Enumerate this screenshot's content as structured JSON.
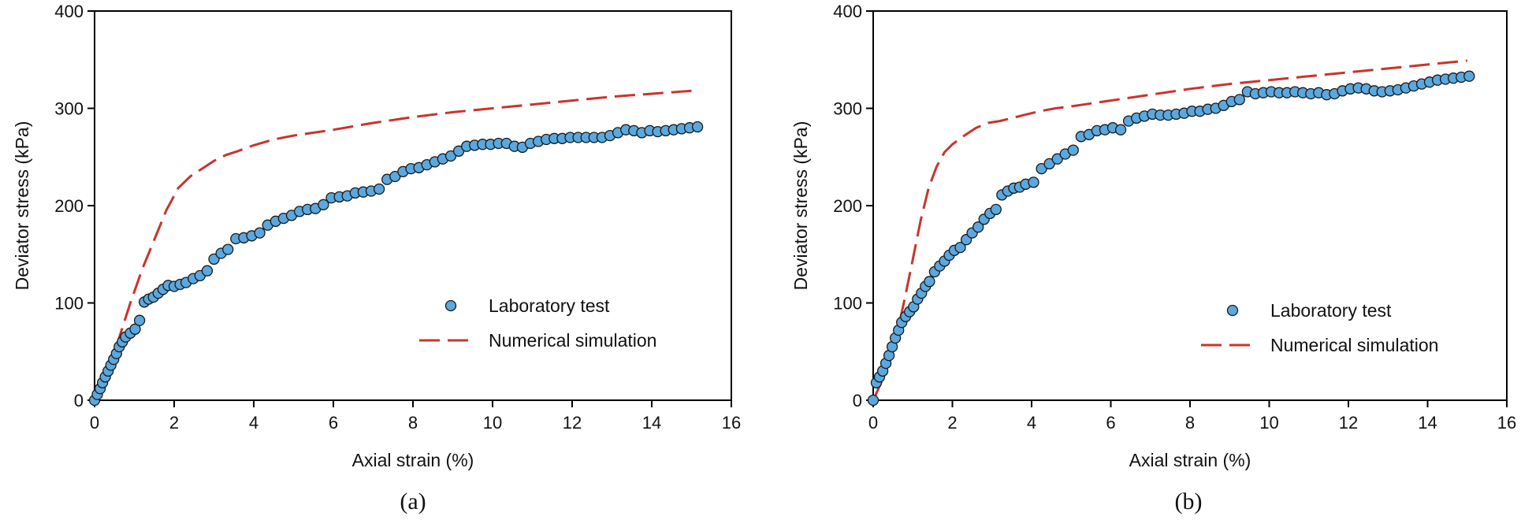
{
  "chart_data": [
    {
      "type": "scatter",
      "panel_label": "(a)",
      "xlabel": "Axial strain (%)",
      "ylabel": "Deviator stress (kPa)",
      "xlim": [
        0,
        16
      ],
      "ylim": [
        0,
        400
      ],
      "xticks": [
        0,
        2,
        4,
        6,
        8,
        10,
        12,
        14,
        16
      ],
      "yticks": [
        0,
        100,
        200,
        300,
        400
      ],
      "legend_position": "center-right",
      "series": [
        {
          "name": "Laboratory test",
          "kind": "markers",
          "color": "#5aa8de",
          "x": [
            0,
            0.07,
            0.14,
            0.2,
            0.27,
            0.34,
            0.41,
            0.48,
            0.55,
            0.62,
            0.7,
            0.78,
            0.9,
            1.02,
            1.13,
            1.25,
            1.36,
            1.48,
            1.6,
            1.72,
            1.85,
            2.0,
            2.15,
            2.3,
            2.48,
            2.65,
            2.83,
            3.0,
            3.18,
            3.35,
            3.55,
            3.75,
            3.95,
            4.15,
            4.35,
            4.55,
            4.75,
            4.95,
            5.15,
            5.35,
            5.55,
            5.75,
            5.95,
            6.15,
            6.35,
            6.55,
            6.75,
            6.95,
            7.15,
            7.35,
            7.55,
            7.75,
            7.95,
            8.15,
            8.35,
            8.55,
            8.75,
            8.95,
            9.15,
            9.35,
            9.55,
            9.75,
            9.95,
            10.15,
            10.35,
            10.55,
            10.75,
            10.95,
            11.15,
            11.35,
            11.55,
            11.75,
            11.95,
            12.15,
            12.35,
            12.55,
            12.75,
            12.95,
            13.15,
            13.35,
            13.55,
            13.75,
            13.95,
            14.15,
            14.35,
            14.55,
            14.75,
            14.95,
            15.15
          ],
          "y": [
            0,
            6,
            12,
            18,
            24,
            30,
            36,
            42,
            48,
            55,
            60,
            65,
            69,
            73,
            82,
            101,
            104,
            106,
            110,
            114,
            118,
            117,
            119,
            121,
            125,
            128,
            133,
            145,
            151,
            155,
            166,
            167,
            169,
            172,
            180,
            184,
            187,
            190,
            194,
            196,
            197,
            201,
            208,
            209,
            210,
            213,
            214,
            215,
            217,
            227,
            230,
            235,
            238,
            239,
            242,
            245,
            248,
            251,
            256,
            261,
            262,
            263,
            263,
            264,
            264,
            261,
            260,
            264,
            266,
            268,
            269,
            269,
            270,
            270,
            270,
            270,
            270,
            272,
            275,
            278,
            277,
            275,
            277,
            276,
            277,
            278,
            279,
            280,
            281
          ]
        },
        {
          "name": "Numerical simulation",
          "kind": "dashed-line",
          "color": "#c8352c",
          "x": [
            0,
            0.3,
            0.6,
            0.9,
            1.2,
            1.5,
            1.8,
            2.1,
            2.4,
            2.7,
            3.0,
            3.3,
            3.6,
            4.0,
            4.5,
            5.0,
            5.5,
            6.0,
            7.0,
            8.0,
            9.0,
            10.0,
            11.0,
            12.0,
            13.0,
            14.0,
            15.0
          ],
          "y": [
            0,
            30,
            62,
            100,
            135,
            165,
            195,
            218,
            230,
            238,
            246,
            252,
            256,
            262,
            268,
            272,
            275,
            278,
            285,
            291,
            296,
            300,
            304,
            308,
            312,
            315,
            318
          ]
        }
      ]
    },
    {
      "type": "scatter",
      "panel_label": "(b)",
      "xlabel": "Axial strain (%)",
      "ylabel": "Deviator stress (kPa)",
      "xlim": [
        0,
        16
      ],
      "ylim": [
        0,
        400
      ],
      "xticks": [
        0,
        2,
        4,
        6,
        8,
        10,
        12,
        14,
        16
      ],
      "yticks": [
        0,
        100,
        200,
        300,
        400
      ],
      "legend_position": "center-right",
      "series": [
        {
          "name": "Laboratory test",
          "kind": "markers",
          "color": "#5aa8de",
          "x": [
            0,
            0.08,
            0.16,
            0.24,
            0.32,
            0.4,
            0.48,
            0.56,
            0.64,
            0.72,
            0.82,
            0.92,
            1.02,
            1.12,
            1.22,
            1.32,
            1.42,
            1.55,
            1.68,
            1.8,
            1.92,
            2.05,
            2.2,
            2.35,
            2.5,
            2.65,
            2.8,
            2.95,
            3.1,
            3.25,
            3.4,
            3.55,
            3.7,
            3.85,
            4.05,
            4.25,
            4.45,
            4.65,
            4.85,
            5.05,
            5.25,
            5.45,
            5.65,
            5.85,
            6.05,
            6.25,
            6.45,
            6.65,
            6.85,
            7.05,
            7.25,
            7.45,
            7.65,
            7.85,
            8.05,
            8.25,
            8.45,
            8.65,
            8.85,
            9.05,
            9.25,
            9.45,
            9.65,
            9.85,
            10.05,
            10.25,
            10.45,
            10.65,
            10.85,
            11.05,
            11.25,
            11.45,
            11.65,
            11.85,
            12.05,
            12.25,
            12.45,
            12.65,
            12.85,
            13.05,
            13.25,
            13.45,
            13.65,
            13.85,
            14.05,
            14.25,
            14.45,
            14.65,
            14.85,
            15.05
          ],
          "y": [
            0,
            18,
            24,
            30,
            38,
            46,
            55,
            64,
            72,
            80,
            86,
            91,
            96,
            104,
            110,
            117,
            122,
            132,
            138,
            143,
            149,
            154,
            157,
            165,
            172,
            178,
            186,
            192,
            196,
            211,
            215,
            218,
            219,
            222,
            224,
            238,
            243,
            248,
            253,
            257,
            271,
            273,
            277,
            278,
            280,
            278,
            287,
            290,
            292,
            294,
            293,
            293,
            294,
            295,
            297,
            297,
            299,
            300,
            303,
            307,
            309,
            317,
            315,
            316,
            317,
            316,
            316,
            317,
            316,
            315,
            316,
            314,
            315,
            318,
            320,
            321,
            320,
            318,
            317,
            318,
            319,
            321,
            323,
            325,
            327,
            329,
            330,
            331,
            332,
            333
          ]
        },
        {
          "name": "Numerical simulation",
          "kind": "dashed-line",
          "color": "#c8352c",
          "x": [
            0,
            0.2,
            0.4,
            0.6,
            0.8,
            1.0,
            1.2,
            1.4,
            1.6,
            1.8,
            2.0,
            2.3,
            2.6,
            2.9,
            3.2,
            3.5,
            3.8,
            4.2,
            4.6,
            5.0,
            5.5,
            6.0,
            7.0,
            8.0,
            9.0,
            10.0,
            11.0,
            12.0,
            13.0,
            14.0,
            15.0
          ],
          "y": [
            0,
            18,
            40,
            68,
            105,
            145,
            185,
            218,
            240,
            255,
            263,
            272,
            280,
            285,
            287,
            290,
            293,
            297,
            300,
            302,
            305,
            308,
            314,
            320,
            325,
            329,
            333,
            337,
            341,
            345,
            349
          ]
        }
      ]
    }
  ]
}
